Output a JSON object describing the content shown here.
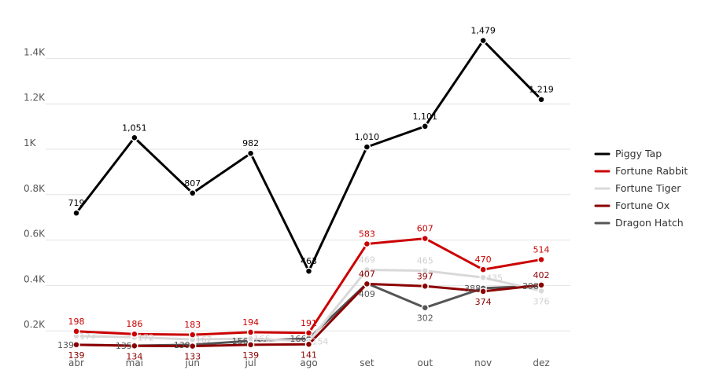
{
  "chart_data": {
    "type": "line",
    "title": "",
    "xlabel": "",
    "ylabel": "",
    "categories": [
      "abr",
      "mai",
      "jun",
      "jul",
      "ago",
      "set",
      "out",
      "nov",
      "dez"
    ],
    "ylim": [
      0,
      1600
    ],
    "yticks": [
      {
        "value": 200,
        "label": "0.2K"
      },
      {
        "value": 400,
        "label": "0.4K"
      },
      {
        "value": 600,
        "label": "0.6K"
      },
      {
        "value": 800,
        "label": "0.8K"
      },
      {
        "value": 1000,
        "label": "1K"
      },
      {
        "value": 1200,
        "label": "1.2K"
      },
      {
        "value": 1400,
        "label": "1.4K"
      }
    ],
    "grid": true,
    "legend_position": "right",
    "series": [
      {
        "name": "Piggy Tap",
        "color": "#000000",
        "values": [
          719,
          1051,
          807,
          982,
          463,
          1010,
          1101,
          1479,
          1219
        ],
        "labels": [
          "719",
          "1,051",
          "807",
          "982",
          "463",
          "1,010",
          "1,101",
          "1,479",
          "1,219"
        ],
        "label_pos": [
          "above",
          "above",
          "above",
          "above",
          "above",
          "above",
          "above",
          "above",
          "above"
        ]
      },
      {
        "name": "Dragon Hatch",
        "color": "#555555",
        "values": [
          139,
          135,
          139,
          156,
          166,
          409,
          302,
          388,
          398
        ],
        "labels": [
          "139",
          "135",
          "139",
          "156",
          "166",
          "409",
          "302",
          "388",
          "398"
        ],
        "label_pos": [
          "left",
          "left",
          "left",
          "left",
          "left",
          "below",
          "below",
          "left",
          "left"
        ]
      },
      {
        "name": "Fortune Tiger",
        "color": "#d9d9d9",
        "values": [
          177,
          172,
          162,
          166,
          154,
          469,
          465,
          435,
          376
        ],
        "labels": [
          "177",
          "172",
          "162",
          "166",
          "154",
          "469",
          "465",
          "435",
          "376"
        ],
        "label_pos": [
          "right",
          "right",
          "right",
          "right",
          "right",
          "above",
          "above",
          "right",
          "below"
        ]
      },
      {
        "name": "Fortune Ox",
        "color": "#8b0000",
        "values": [
          139,
          134,
          133,
          139,
          141,
          407,
          397,
          374,
          402
        ],
        "labels": [
          "139",
          "134",
          "133",
          "139",
          "141",
          "407",
          "397",
          "374",
          "402"
        ],
        "label_pos": [
          "below",
          "below",
          "below",
          "below",
          "below",
          "above",
          "above",
          "below",
          "above"
        ]
      },
      {
        "name": "Fortune Rabbit",
        "color": "#cc0000",
        "values": [
          198,
          186,
          183,
          194,
          191,
          583,
          607,
          470,
          514
        ],
        "labels": [
          "198",
          "186",
          "183",
          "194",
          "191",
          "583",
          "607",
          "470",
          "514"
        ],
        "label_pos": [
          "above",
          "above",
          "above",
          "above",
          "above",
          "above",
          "above",
          "above",
          "above"
        ]
      }
    ],
    "legend": [
      {
        "label": "Piggy Tap",
        "color": "#000000"
      },
      {
        "label": "Fortune Rabbit",
        "color": "#cc0000"
      },
      {
        "label": "Fortune Tiger",
        "color": "#d9d9d9"
      },
      {
        "label": "Fortune Ox",
        "color": "#8b0000"
      },
      {
        "label": "Dragon Hatch",
        "color": "#555555"
      }
    ]
  }
}
